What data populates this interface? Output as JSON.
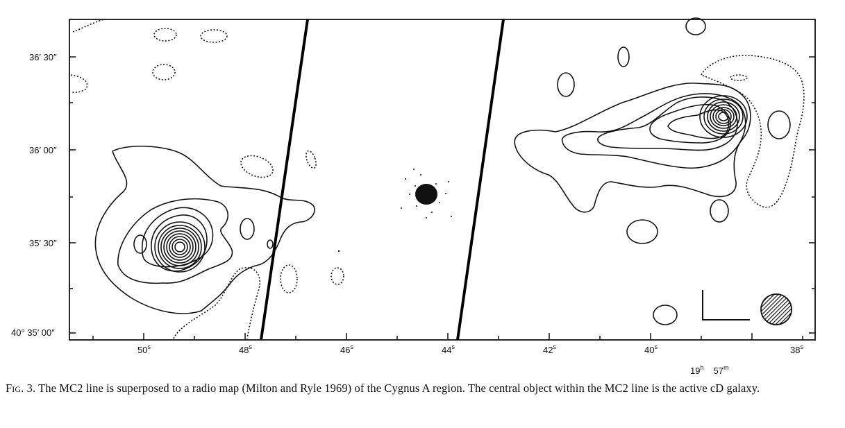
{
  "figure": {
    "y_axis": {
      "ticks": [
        "36′ 30″",
        "36′ 00″",
        "35′ 30″",
        "40° 35′ 00″"
      ]
    },
    "x_axis": {
      "ticks": [
        {
          "num": "50",
          "unit": "s"
        },
        {
          "num": "48",
          "unit": "s"
        },
        {
          "num": "46",
          "unit": "s"
        },
        {
          "num": "44",
          "unit": "s"
        },
        {
          "num": "42",
          "unit": "s"
        },
        {
          "num": "40",
          "unit": "s"
        },
        {
          "num": "38",
          "unit": "s"
        }
      ],
      "epoch_label": {
        "h": "19",
        "h_unit": "h",
        "m": "57",
        "m_unit": "m"
      }
    }
  },
  "caption": {
    "label": "Fig. 3.",
    "text": " The MC2 line is superposed to a radio map (Milton and Ryle 1969) of the Cygnus A region. The central object within the MC2 line is the active cD galaxy."
  }
}
